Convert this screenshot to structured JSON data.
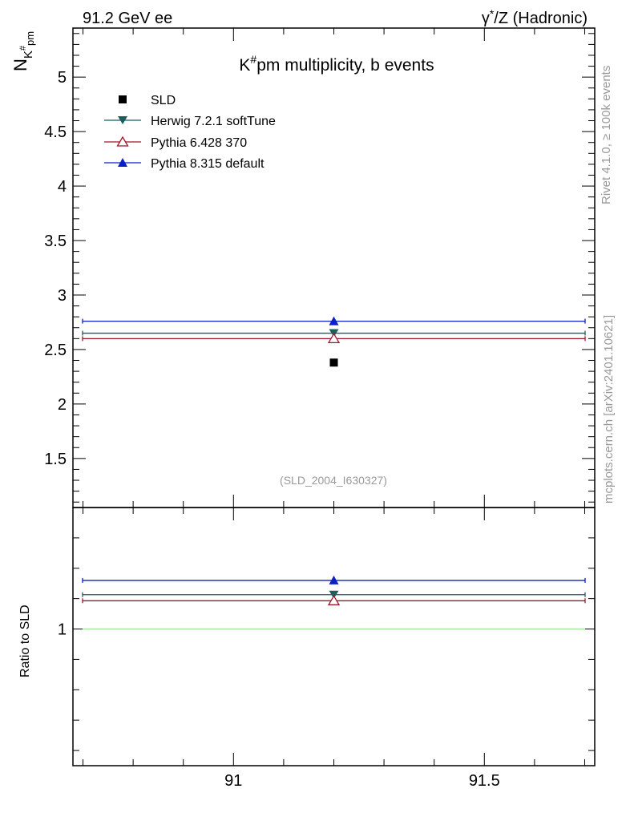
{
  "header": {
    "left": "91.2 GeV ee",
    "right_prefix": "γ",
    "right_sup": "*",
    "right_suffix": "/Z (Hadronic)"
  },
  "side_labels": {
    "rivet": "Rivet 4.1.0, ≥ 100k events",
    "mcplots": "mcplots.cern.ch [arXiv:2401.10621]"
  },
  "ylabel_main": {
    "base": "N",
    "sub": "K",
    "subsup": "#",
    "subsub": "pm"
  },
  "ylabel_ratio": "Ratio to SLD",
  "colors": {
    "sld": "#000000",
    "herwig": "#1f5c5c",
    "pythia6": "#a0152a",
    "pythia8": "#0a1fc8",
    "ratio_ref": "#99e699",
    "watermark": "#999999"
  },
  "chart_data": [
    {
      "type": "scatter",
      "panel": "main",
      "title": {
        "base": "K",
        "sup": "#",
        "rest": "pm multiplicity, b events"
      },
      "annotation": "(SLD_2004_I630327)",
      "xlim": [
        90.68,
        91.72
      ],
      "ylim": [
        1.05,
        5.45
      ],
      "yticks": [
        1.5,
        2,
        2.5,
        3,
        3.5,
        4,
        4.5,
        5
      ],
      "ytick_labels": [
        "1.5",
        "2",
        "2.5",
        "3",
        "3.5",
        "4",
        "4.5",
        "5"
      ],
      "legend_placement": "top-left",
      "series": [
        {
          "name": "SLD",
          "marker": "square",
          "x": [
            91.2
          ],
          "y": [
            2.38
          ],
          "xerr": [
            0
          ]
        },
        {
          "name": "Herwig 7.2.1 softTune",
          "marker": "triangle-down",
          "x": [
            91.2
          ],
          "y": [
            2.65
          ],
          "xrange": [
            90.68,
            91.72
          ]
        },
        {
          "name": "Pythia 6.428 370",
          "marker": "triangle-up-open",
          "x": [
            91.2
          ],
          "y": [
            2.6
          ],
          "xrange": [
            90.68,
            91.72
          ]
        },
        {
          "name": "Pythia 8.315 default",
          "marker": "triangle-up",
          "x": [
            91.2
          ],
          "y": [
            2.76
          ],
          "xrange": [
            90.68,
            91.72
          ]
        }
      ]
    },
    {
      "type": "scatter",
      "panel": "ratio",
      "xlim": [
        90.68,
        91.72
      ],
      "ylim": [
        0.55,
        1.4
      ],
      "yticks": [
        1
      ],
      "ytick_labels": [
        "1"
      ],
      "xticks": [
        91,
        91.5
      ],
      "xtick_labels": [
        "91",
        "91.5"
      ],
      "reference": 1,
      "series": [
        {
          "name": "Herwig 7.2.1 softTune",
          "marker": "triangle-down",
          "x": [
            91.2
          ],
          "y": [
            1.113
          ],
          "xrange": [
            90.68,
            91.72
          ]
        },
        {
          "name": "Pythia 6.428 370",
          "marker": "triangle-up-open",
          "x": [
            91.2
          ],
          "y": [
            1.093
          ],
          "xrange": [
            90.68,
            91.72
          ]
        },
        {
          "name": "Pythia 8.315 default",
          "marker": "triangle-up",
          "x": [
            91.2
          ],
          "y": [
            1.16
          ],
          "xrange": [
            90.68,
            91.72
          ]
        }
      ]
    }
  ]
}
